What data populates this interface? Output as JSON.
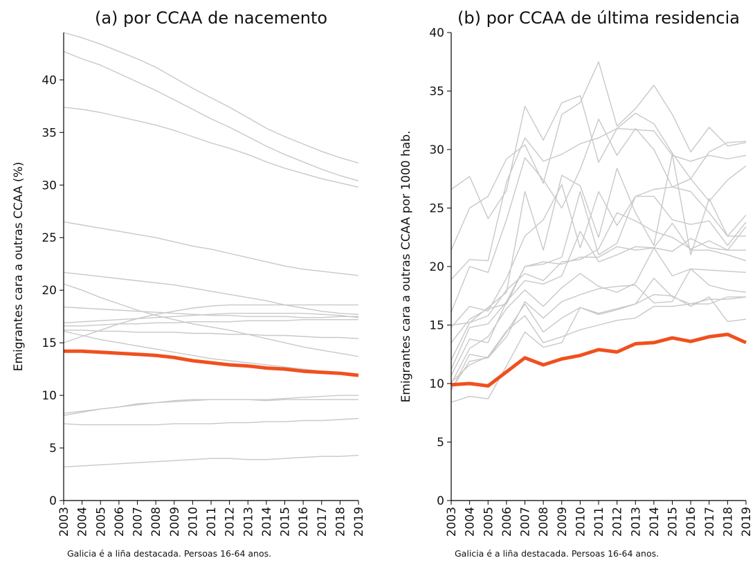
{
  "chart_data": [
    {
      "type": "line",
      "title": "(a) por CCAA de nacemento",
      "ylabel": "Emigrantes cara a outras CCAA (%)",
      "note": "Galicia é a liña destacada. Persoas 16-64 anos.",
      "x": [
        2003,
        2004,
        2005,
        2006,
        2007,
        2008,
        2009,
        2010,
        2011,
        2012,
        2013,
        2014,
        2015,
        2016,
        2017,
        2018,
        2019
      ],
      "xlim": [
        2003,
        2019
      ],
      "xticks": [
        2003,
        2004,
        2005,
        2006,
        2007,
        2008,
        2009,
        2010,
        2011,
        2012,
        2013,
        2014,
        2015,
        2016,
        2017,
        2018,
        2019
      ],
      "ylim": [
        0,
        44.5
      ],
      "yticks": [
        0,
        5,
        10,
        15,
        20,
        25,
        30,
        35,
        40
      ],
      "series": [
        {
          "color": "#c8c8c8",
          "values": [
            44.5,
            44.0,
            43.4,
            42.7,
            42.0,
            41.2,
            40.2,
            39.2,
            38.3,
            37.4,
            36.4,
            35.4,
            34.6,
            33.9,
            33.2,
            32.6,
            32.1
          ]
        },
        {
          "color": "#c8c8c8",
          "values": [
            42.7,
            42.0,
            41.4,
            40.6,
            39.8,
            39.0,
            38.1,
            37.2,
            36.3,
            35.5,
            34.6,
            33.7,
            32.9,
            32.2,
            31.5,
            30.9,
            30.4
          ]
        },
        {
          "color": "#c8c8c8",
          "values": [
            37.4,
            37.2,
            36.9,
            36.5,
            36.1,
            35.7,
            35.2,
            34.6,
            34.0,
            33.5,
            32.9,
            32.2,
            31.6,
            31.1,
            30.6,
            30.2,
            29.8
          ]
        },
        {
          "color": "#c8c8c8",
          "values": [
            26.5,
            26.2,
            25.9,
            25.6,
            25.3,
            25.0,
            24.6,
            24.2,
            23.9,
            23.5,
            23.1,
            22.7,
            22.3,
            22.0,
            21.8,
            21.6,
            21.4
          ]
        },
        {
          "color": "#c8c8c8",
          "values": [
            21.7,
            21.5,
            21.3,
            21.1,
            20.9,
            20.7,
            20.5,
            20.2,
            19.9,
            19.6,
            19.3,
            19.0,
            18.6,
            18.3,
            18.0,
            17.8,
            17.7
          ]
        },
        {
          "color": "#c8c8c8",
          "values": [
            20.6,
            20.0,
            19.3,
            18.7,
            18.1,
            17.6,
            17.2,
            16.8,
            16.5,
            16.2,
            15.8,
            15.4,
            15.0,
            14.6,
            14.3,
            14.0,
            13.7
          ]
        },
        {
          "color": "#c8c8c8",
          "values": [
            18.4,
            18.3,
            18.2,
            18.1,
            18.0,
            17.9,
            17.8,
            17.7,
            17.6,
            17.6,
            17.5,
            17.5,
            17.5,
            17.4,
            17.4,
            17.5,
            17.5
          ]
        },
        {
          "color": "#c8c8c8",
          "values": [
            15.0,
            15.6,
            16.2,
            16.8,
            17.3,
            17.7,
            18.0,
            18.3,
            18.5,
            18.6,
            18.6,
            18.6,
            18.6,
            18.6,
            18.6,
            18.6,
            18.6
          ]
        },
        {
          "color": "#c8c8c8",
          "values": [
            16.9,
            17.0,
            17.1,
            17.2,
            17.3,
            17.4,
            17.5,
            17.6,
            17.7,
            17.8,
            17.8,
            17.8,
            17.8,
            17.8,
            17.7,
            17.6,
            17.4
          ]
        },
        {
          "color": "#c8c8c8",
          "values": [
            16.2,
            16.2,
            16.1,
            16.1,
            16.0,
            16.0,
            16.0,
            15.9,
            15.9,
            15.8,
            15.8,
            15.7,
            15.7,
            15.6,
            15.5,
            15.5,
            15.4
          ]
        },
        {
          "color": "#c8c8c8",
          "values": [
            16.1,
            15.7,
            15.3,
            15.0,
            14.7,
            14.4,
            14.1,
            13.8,
            13.5,
            13.3,
            13.1,
            12.9,
            12.7,
            12.5,
            12.3,
            12.1,
            12.0
          ]
        },
        {
          "color": "#c8c8c8",
          "values": [
            16.6,
            16.6,
            16.7,
            16.8,
            16.8,
            16.9,
            16.9,
            17.0,
            17.0,
            17.0,
            17.1,
            17.1,
            17.1,
            17.2,
            17.2,
            17.2,
            17.2
          ]
        },
        {
          "color": "#c8c8c8",
          "values": [
            8.3,
            8.5,
            8.7,
            8.9,
            9.1,
            9.3,
            9.4,
            9.5,
            9.6,
            9.6,
            9.6,
            9.6,
            9.7,
            9.8,
            9.9,
            10.0,
            10.0
          ]
        },
        {
          "color": "#c8c8c8",
          "values": [
            8.1,
            8.4,
            8.7,
            8.9,
            9.2,
            9.3,
            9.5,
            9.6,
            9.6,
            9.6,
            9.6,
            9.5,
            9.6,
            9.6,
            9.6,
            9.6,
            9.6
          ]
        },
        {
          "color": "#c8c8c8",
          "values": [
            7.3,
            7.2,
            7.2,
            7.2,
            7.2,
            7.2,
            7.3,
            7.3,
            7.3,
            7.4,
            7.4,
            7.5,
            7.5,
            7.6,
            7.6,
            7.7,
            7.8
          ]
        },
        {
          "color": "#c8c8c8",
          "values": [
            3.2,
            3.3,
            3.4,
            3.5,
            3.6,
            3.7,
            3.8,
            3.9,
            4.0,
            4.0,
            3.9,
            3.9,
            4.0,
            4.1,
            4.2,
            4.2,
            4.3
          ]
        },
        {
          "color": "#f0501e",
          "highlight": true,
          "values": [
            14.2,
            14.2,
            14.1,
            14.0,
            13.9,
            13.8,
            13.6,
            13.3,
            13.1,
            12.9,
            12.8,
            12.6,
            12.5,
            12.3,
            12.2,
            12.1,
            11.9
          ]
        }
      ]
    },
    {
      "type": "line",
      "title": "(b) por CCAA de última residencia",
      "ylabel": "Emigrantes cara a outras CCAA por 1000 hab.",
      "note": "Galicia é a liña destacada. Persoas 16-64 anos.",
      "x": [
        2003,
        2004,
        2005,
        2006,
        2007,
        2008,
        2009,
        2010,
        2011,
        2012,
        2013,
        2014,
        2015,
        2016,
        2017,
        2018,
        2019
      ],
      "xlim": [
        2003,
        2019
      ],
      "xticks": [
        2003,
        2004,
        2005,
        2006,
        2007,
        2008,
        2009,
        2010,
        2011,
        2012,
        2013,
        2014,
        2015,
        2016,
        2017,
        2018,
        2019
      ],
      "ylim": [
        0,
        40
      ],
      "yticks": [
        0,
        5,
        10,
        15,
        20,
        25,
        30,
        35,
        40
      ],
      "series": [
        {
          "color": "#c8c8c8",
          "values": [
            26.6,
            27.7,
            24.1,
            26.5,
            33.7,
            30.8,
            34.0,
            34.6,
            28.9,
            31.8,
            33.1,
            32.2,
            29.7,
            27.5,
            29.8,
            30.6,
            30.7
          ]
        },
        {
          "color": "#c8c8c8",
          "values": [
            21.4,
            25.0,
            26.0,
            29.2,
            30.4,
            27.1,
            33.0,
            34.0,
            37.5,
            32.0,
            33.5,
            35.5,
            33.0,
            29.8,
            31.9,
            30.3,
            30.6
          ]
        },
        {
          "color": "#c8c8c8",
          "values": [
            18.9,
            20.6,
            20.5,
            27.2,
            31.0,
            29.0,
            29.6,
            30.5,
            31.0,
            31.8,
            31.7,
            31.6,
            29.5,
            29.0,
            29.5,
            29.2,
            29.5
          ]
        },
        {
          "color": "#c8c8c8",
          "values": [
            16.1,
            20.0,
            19.5,
            24.0,
            29.3,
            27.4,
            25.0,
            28.3,
            32.6,
            29.5,
            31.8,
            30.0,
            26.8,
            27.5,
            25.6,
            27.4,
            28.6
          ]
        },
        {
          "color": "#c8c8c8",
          "values": [
            15.0,
            15.2,
            16.5,
            17.8,
            26.4,
            21.4,
            27.8,
            26.9,
            22.5,
            28.4,
            24.6,
            21.8,
            29.6,
            21.0,
            25.8,
            22.6,
            22.6
          ]
        },
        {
          "color": "#c8c8c8",
          "values": [
            14.8,
            16.6,
            16.2,
            19.0,
            22.6,
            24.0,
            27.0,
            21.6,
            26.4,
            23.5,
            26.0,
            26.6,
            26.8,
            26.4,
            24.6,
            22.6,
            24.4
          ]
        },
        {
          "color": "#c8c8c8",
          "values": [
            13.5,
            15.5,
            16.4,
            16.8,
            20.0,
            20.2,
            20.8,
            26.4,
            21.0,
            22.0,
            26.0,
            26.0,
            24.0,
            23.6,
            23.9,
            21.8,
            23.8
          ]
        },
        {
          "color": "#c8c8c8",
          "values": [
            12.0,
            15.2,
            15.8,
            18.0,
            19.4,
            18.8,
            20.4,
            20.6,
            21.5,
            24.6,
            23.9,
            23.0,
            22.5,
            21.5,
            22.2,
            21.4,
            23.4
          ]
        },
        {
          "color": "#c8c8c8",
          "values": [
            11.2,
            14.8,
            15.1,
            17.0,
            20.0,
            20.4,
            20.2,
            20.8,
            20.8,
            21.7,
            21.4,
            21.6,
            21.3,
            22.4,
            21.6,
            21.4,
            21.4
          ]
        },
        {
          "color": "#c8c8c8",
          "values": [
            10.7,
            13.8,
            13.5,
            17.0,
            18.8,
            18.5,
            19.2,
            23.0,
            20.4,
            21.0,
            21.7,
            21.6,
            23.7,
            21.4,
            21.4,
            21.0,
            20.5
          ]
        },
        {
          "color": "#c8c8c8",
          "values": [
            10.0,
            13.0,
            14.0,
            16.4,
            18.0,
            16.6,
            18.2,
            19.4,
            18.3,
            17.8,
            18.6,
            21.6,
            19.2,
            19.8,
            19.7,
            19.6,
            19.5
          ]
        },
        {
          "color": "#c8c8c8",
          "values": [
            9.4,
            12.5,
            12.2,
            14.0,
            17.0,
            15.6,
            17.0,
            17.6,
            18.1,
            18.3,
            18.4,
            16.9,
            17.0,
            19.8,
            18.4,
            18.0,
            17.8
          ]
        },
        {
          "color": "#c8c8c8",
          "values": [
            9.5,
            11.9,
            12.2,
            14.4,
            16.8,
            14.4,
            15.6,
            16.5,
            16.0,
            16.4,
            16.8,
            19.0,
            17.4,
            16.8,
            17.2,
            17.2,
            17.4
          ]
        },
        {
          "color": "#c8c8c8",
          "values": [
            8.4,
            8.9,
            8.7,
            11.5,
            14.4,
            13.1,
            13.5,
            16.5,
            15.9,
            16.3,
            16.8,
            17.6,
            17.5,
            16.6,
            17.4,
            15.3,
            15.5
          ]
        },
        {
          "color": "#c8c8c8",
          "values": [
            10.1,
            11.6,
            12.3,
            14.5,
            15.8,
            13.5,
            14.0,
            14.6,
            15.0,
            15.4,
            15.6,
            16.6,
            16.6,
            16.8,
            16.8,
            17.4,
            17.4
          ]
        },
        {
          "color": "#f0501e",
          "highlight": true,
          "values": [
            9.9,
            10.0,
            9.8,
            11.0,
            12.2,
            11.6,
            12.1,
            12.4,
            12.9,
            12.7,
            13.4,
            13.5,
            13.9,
            13.6,
            14.0,
            14.2,
            13.5
          ]
        }
      ]
    }
  ]
}
